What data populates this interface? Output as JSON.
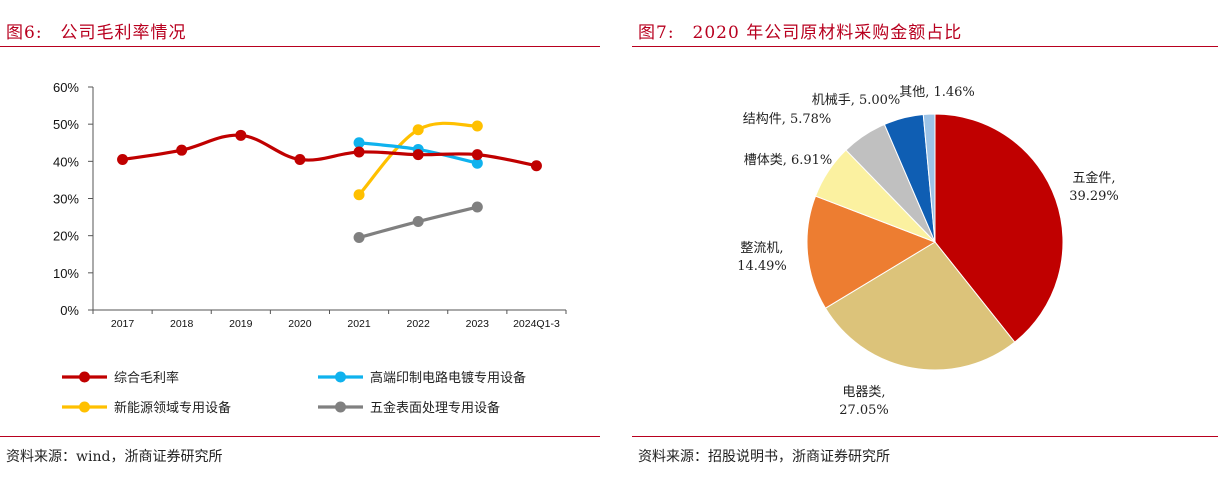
{
  "left": {
    "figure_number": "图6:",
    "title": "公司毛利率情况",
    "source": "资料来源：wind，浙商证券研究所"
  },
  "right": {
    "figure_number": "图7:",
    "title": "2020 年公司原材料采购金额占比",
    "source": "资料来源：招股说明书，浙商证券研究所"
  },
  "chart_data": [
    {
      "type": "line",
      "categories": [
        "2017",
        "2018",
        "2019",
        "2020",
        "2021",
        "2022",
        "2023",
        "2024Q1-3"
      ],
      "ylim": [
        0,
        60
      ],
      "yticks": [
        "0%",
        "10%",
        "20%",
        "30%",
        "40%",
        "50%",
        "60%"
      ],
      "series": [
        {
          "name": "综合毛利率",
          "color": "#c00000",
          "values": [
            40.5,
            43.0,
            47.0,
            40.5,
            42.5,
            41.8,
            41.8,
            38.8
          ]
        },
        {
          "name": "高端印制电路电镀专用设备",
          "color": "#0fb2ee",
          "values": [
            null,
            null,
            null,
            null,
            45.0,
            43.2,
            39.5,
            null
          ]
        },
        {
          "name": "新能源领域专用设备",
          "color": "#ffc000",
          "values": [
            null,
            null,
            null,
            null,
            31.0,
            48.5,
            49.5,
            null
          ]
        },
        {
          "name": "五金表面处理专用设备",
          "color": "#808080",
          "values": [
            null,
            null,
            null,
            null,
            19.5,
            23.8,
            27.7,
            null
          ]
        }
      ],
      "legend_position": "bottom",
      "grid": false
    },
    {
      "type": "pie",
      "slices": [
        {
          "label": "五金件",
          "value": 39.29,
          "display": "39.29%",
          "color": "#c00000"
        },
        {
          "label": "电器类",
          "value": 27.05,
          "display": "27.05%",
          "color": "#dcc37a"
        },
        {
          "label": "整流机",
          "value": 14.49,
          "display": "14.49%",
          "color": "#ed7d31"
        },
        {
          "label": "槽体类",
          "value": 6.91,
          "display": "6.91%",
          "color": "#fbf1a0"
        },
        {
          "label": "结构件",
          "value": 5.78,
          "display": "5.78%",
          "color": "#c0c0c0"
        },
        {
          "label": "机械手",
          "value": 5.0,
          "display": "5.00%",
          "color": "#0f5eb3"
        },
        {
          "label": "其他",
          "value": 1.46,
          "display": "1.46%",
          "color": "#9dc3e6"
        }
      ]
    }
  ]
}
